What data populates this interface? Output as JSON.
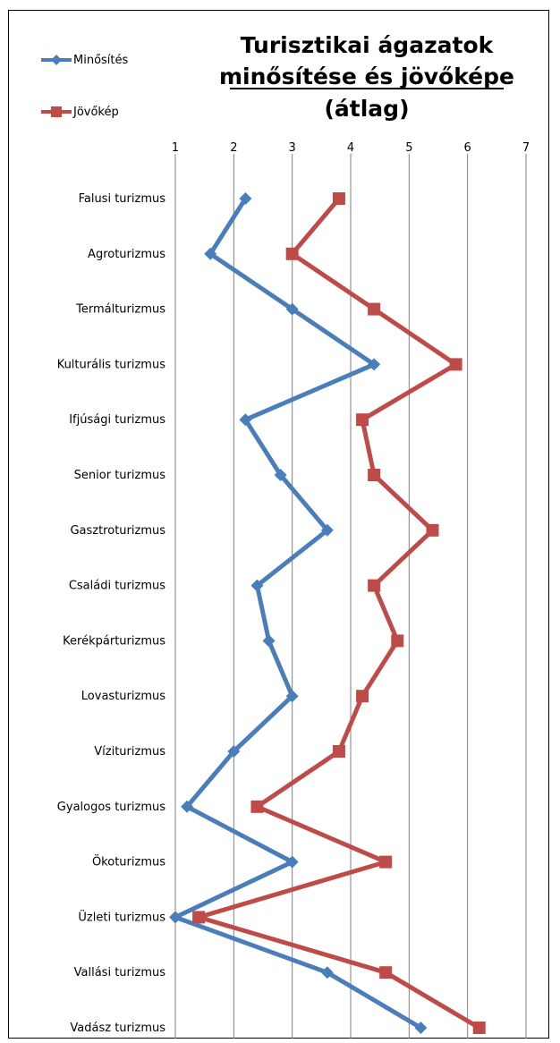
{
  "chart_data": {
    "type": "line",
    "title_lines": [
      "Turisztikai ágazatok",
      "minősítése és jövőképe",
      "(átlag)"
    ],
    "x_ticks": [
      "1",
      "2",
      "3",
      "4",
      "5",
      "6",
      "7"
    ],
    "xlim": [
      1,
      7
    ],
    "grid": "vertical",
    "legend_position": "top-left",
    "categories": [
      "Falusi turizmus",
      "Agroturizmus",
      "Termálturizmus",
      "Kulturális turizmus",
      "Ifjúsági turizmus",
      "Senior turizmus",
      "Gasztroturizmus",
      "Családi turizmus",
      "Kerékpárturizmus",
      "Lovasturizmus",
      "Víziturizmus",
      "Gyalogos turizmus",
      "Ökoturizmus",
      "Üzleti turizmus",
      "Vallási turizmus",
      "Vadász turizmus"
    ],
    "series": [
      {
        "name": "Minősítés",
        "color": "#4a7ebb",
        "marker": "diamond",
        "values": [
          2.2,
          1.6,
          3.0,
          4.4,
          2.2,
          2.8,
          3.6,
          2.4,
          2.6,
          3.0,
          2.0,
          1.2,
          3.0,
          1.0,
          3.6,
          5.2
        ]
      },
      {
        "name": "Jövőkép",
        "color": "#be4b48",
        "marker": "square",
        "values": [
          3.8,
          3.0,
          4.4,
          5.8,
          4.2,
          4.4,
          5.4,
          4.4,
          4.8,
          4.2,
          3.8,
          2.4,
          4.6,
          1.4,
          4.6,
          6.2
        ]
      }
    ]
  }
}
